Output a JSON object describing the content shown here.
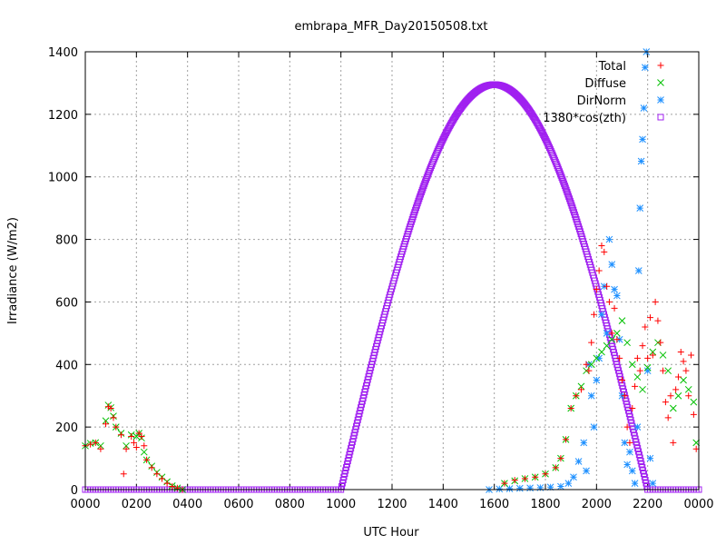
{
  "chart_data": {
    "type": "scatter",
    "title": "embrapa_MFR_Day20150508.txt",
    "xlabel": "UTC Hour",
    "ylabel": "Irradiance (W/m2)",
    "xlim": [
      0,
      2400
    ],
    "ylim": [
      0,
      1400
    ],
    "x_ticks": [
      "0000",
      "0200",
      "0400",
      "0600",
      "0800",
      "1000",
      "1200",
      "1400",
      "1600",
      "1800",
      "2000",
      "2200",
      "0000"
    ],
    "y_ticks": [
      "0",
      "200",
      "400",
      "600",
      "800",
      "1000",
      "1200",
      "1400"
    ],
    "grid": true,
    "legend_position": "top-right",
    "series": [
      {
        "name": "Total",
        "color": "#ff0000",
        "marker": "plus",
        "points": [
          [
            0,
            140
          ],
          [
            20,
            145
          ],
          [
            40,
            150
          ],
          [
            60,
            130
          ],
          [
            80,
            210
          ],
          [
            90,
            265
          ],
          [
            100,
            260
          ],
          [
            110,
            230
          ],
          [
            120,
            200
          ],
          [
            140,
            175
          ],
          [
            150,
            50
          ],
          [
            160,
            130
          ],
          [
            180,
            170
          ],
          [
            190,
            150
          ],
          [
            200,
            135
          ],
          [
            210,
            180
          ],
          [
            220,
            170
          ],
          [
            230,
            140
          ],
          [
            240,
            95
          ],
          [
            260,
            70
          ],
          [
            280,
            50
          ],
          [
            300,
            35
          ],
          [
            320,
            20
          ],
          [
            340,
            10
          ],
          [
            360,
            5
          ],
          [
            380,
            0
          ],
          [
            1640,
            20
          ],
          [
            1680,
            30
          ],
          [
            1720,
            35
          ],
          [
            1760,
            40
          ],
          [
            1800,
            50
          ],
          [
            1840,
            70
          ],
          [
            1860,
            100
          ],
          [
            1880,
            160
          ],
          [
            1900,
            260
          ],
          [
            1920,
            300
          ],
          [
            1940,
            320
          ],
          [
            1960,
            400
          ],
          [
            1970,
            380
          ],
          [
            1980,
            470
          ],
          [
            1990,
            560
          ],
          [
            2000,
            640
          ],
          [
            2010,
            700
          ],
          [
            2020,
            780
          ],
          [
            2030,
            760
          ],
          [
            2040,
            650
          ],
          [
            2050,
            600
          ],
          [
            2060,
            500
          ],
          [
            2070,
            580
          ],
          [
            2080,
            480
          ],
          [
            2090,
            420
          ],
          [
            2100,
            350
          ],
          [
            2110,
            300
          ],
          [
            2120,
            200
          ],
          [
            2130,
            150
          ],
          [
            2140,
            260
          ],
          [
            2150,
            330
          ],
          [
            2160,
            420
          ],
          [
            2170,
            380
          ],
          [
            2180,
            460
          ],
          [
            2190,
            520
          ],
          [
            2200,
            420
          ],
          [
            2210,
            550
          ],
          [
            2220,
            430
          ],
          [
            2230,
            600
          ],
          [
            2240,
            540
          ],
          [
            2250,
            470
          ],
          [
            2260,
            380
          ],
          [
            2270,
            280
          ],
          [
            2280,
            230
          ],
          [
            2290,
            300
          ],
          [
            2300,
            150
          ],
          [
            2310,
            320
          ],
          [
            2320,
            360
          ],
          [
            2330,
            440
          ],
          [
            2340,
            410
          ],
          [
            2350,
            380
          ],
          [
            2360,
            300
          ],
          [
            2370,
            430
          ],
          [
            2380,
            240
          ],
          [
            2390,
            130
          ]
        ]
      },
      {
        "name": "Diffuse",
        "color": "#00c000",
        "marker": "cross",
        "points": [
          [
            0,
            140
          ],
          [
            20,
            148
          ],
          [
            40,
            150
          ],
          [
            60,
            140
          ],
          [
            80,
            220
          ],
          [
            90,
            270
          ],
          [
            100,
            262
          ],
          [
            110,
            235
          ],
          [
            120,
            200
          ],
          [
            140,
            180
          ],
          [
            160,
            140
          ],
          [
            180,
            175
          ],
          [
            200,
            170
          ],
          [
            210,
            180
          ],
          [
            220,
            165
          ],
          [
            230,
            120
          ],
          [
            240,
            95
          ],
          [
            260,
            75
          ],
          [
            280,
            55
          ],
          [
            300,
            40
          ],
          [
            320,
            25
          ],
          [
            340,
            12
          ],
          [
            360,
            5
          ],
          [
            380,
            0
          ],
          [
            1640,
            20
          ],
          [
            1680,
            28
          ],
          [
            1720,
            35
          ],
          [
            1760,
            40
          ],
          [
            1800,
            50
          ],
          [
            1840,
            70
          ],
          [
            1860,
            100
          ],
          [
            1880,
            160
          ],
          [
            1900,
            260
          ],
          [
            1920,
            300
          ],
          [
            1940,
            330
          ],
          [
            1960,
            380
          ],
          [
            1980,
            400
          ],
          [
            2000,
            420
          ],
          [
            2020,
            440
          ],
          [
            2040,
            460
          ],
          [
            2060,
            480
          ],
          [
            2080,
            500
          ],
          [
            2100,
            540
          ],
          [
            2120,
            470
          ],
          [
            2140,
            400
          ],
          [
            2160,
            360
          ],
          [
            2180,
            320
          ],
          [
            2200,
            390
          ],
          [
            2220,
            440
          ],
          [
            2240,
            470
          ],
          [
            2260,
            430
          ],
          [
            2280,
            380
          ],
          [
            2300,
            260
          ],
          [
            2320,
            300
          ],
          [
            2340,
            350
          ],
          [
            2360,
            320
          ],
          [
            2380,
            280
          ],
          [
            2390,
            150
          ]
        ]
      },
      {
        "name": "DirNorm",
        "color": "#1e90ff",
        "marker": "star",
        "points": [
          [
            1580,
            0
          ],
          [
            1620,
            2
          ],
          [
            1660,
            3
          ],
          [
            1700,
            4
          ],
          [
            1740,
            5
          ],
          [
            1780,
            6
          ],
          [
            1820,
            8
          ],
          [
            1860,
            10
          ],
          [
            1890,
            20
          ],
          [
            1910,
            40
          ],
          [
            1930,
            90
          ],
          [
            1950,
            150
          ],
          [
            1960,
            60
          ],
          [
            1970,
            400
          ],
          [
            1980,
            300
          ],
          [
            1990,
            200
          ],
          [
            2000,
            350
          ],
          [
            2010,
            420
          ],
          [
            2020,
            560
          ],
          [
            2030,
            650
          ],
          [
            2040,
            500
          ],
          [
            2050,
            800
          ],
          [
            2060,
            720
          ],
          [
            2070,
            640
          ],
          [
            2080,
            620
          ],
          [
            2090,
            480
          ],
          [
            2100,
            300
          ],
          [
            2110,
            150
          ],
          [
            2120,
            80
          ],
          [
            2130,
            120
          ],
          [
            2140,
            60
          ],
          [
            2150,
            20
          ],
          [
            2160,
            200
          ],
          [
            2165,
            700
          ],
          [
            2170,
            900
          ],
          [
            2175,
            1050
          ],
          [
            2180,
            1120
          ],
          [
            2185,
            1220
          ],
          [
            2190,
            1350
          ],
          [
            2195,
            1400
          ],
          [
            2200,
            380
          ],
          [
            2210,
            100
          ],
          [
            2220,
            20
          ]
        ]
      },
      {
        "name": "1380*cos(zth)",
        "color": "#a020f0",
        "marker": "square",
        "curve": {
          "rise": 1000,
          "peak_hour": 1600,
          "peak": 1295,
          "set": 2200,
          "zero_from": 0,
          "zero_to": 2400,
          "zero_step": 10
        }
      }
    ]
  }
}
